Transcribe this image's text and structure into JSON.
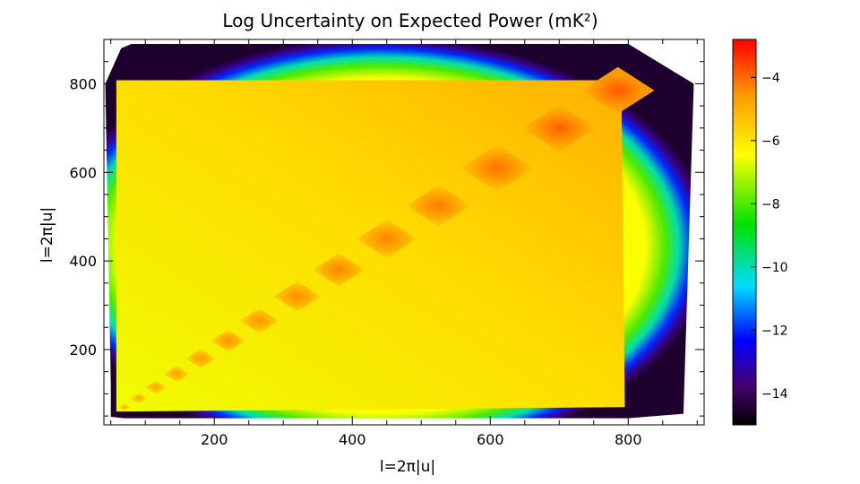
{
  "chart_data": {
    "type": "heatmap",
    "title": "Log Uncertainty on Expected Power (mK²)",
    "xlabel": "l=2π|u|",
    "ylabel": "l=2π|u|",
    "xlim": [
      40,
      910
    ],
    "ylim": [
      30,
      900
    ],
    "x_ticks": [
      200,
      400,
      600,
      800
    ],
    "y_ticks": [
      200,
      400,
      600,
      800
    ],
    "colorbar": {
      "range": [
        -15,
        -2.8
      ],
      "ticks": [
        -4,
        -6,
        -8,
        -10,
        -12,
        -14
      ],
      "colormap": "rainbow"
    },
    "diagonal_peaks": [
      {
        "l": 70,
        "value": -5.0
      },
      {
        "l": 90,
        "value": -4.9
      },
      {
        "l": 115,
        "value": -4.8
      },
      {
        "l": 145,
        "value": -4.7
      },
      {
        "l": 180,
        "value": -4.6
      },
      {
        "l": 220,
        "value": -4.5
      },
      {
        "l": 265,
        "value": -4.5
      },
      {
        "l": 320,
        "value": -4.4
      },
      {
        "l": 380,
        "value": -4.3
      },
      {
        "l": 450,
        "value": -4.3
      },
      {
        "l": 525,
        "value": -4.2
      },
      {
        "l": 610,
        "value": -4.1
      },
      {
        "l": 700,
        "value": -3.9
      },
      {
        "l": 785,
        "value": -3.8
      }
    ],
    "background_levels": {
      "lower_left": -6.6,
      "upper_right": -5.0
    },
    "colors": {
      "red": "#ff0000",
      "orange": "#ff9000",
      "yellow": "#ffff00",
      "green": "#00e000",
      "cyan": "#00e0ff",
      "blue": "#0000ff",
      "violet": "#5500a0",
      "black": "#000000"
    }
  }
}
